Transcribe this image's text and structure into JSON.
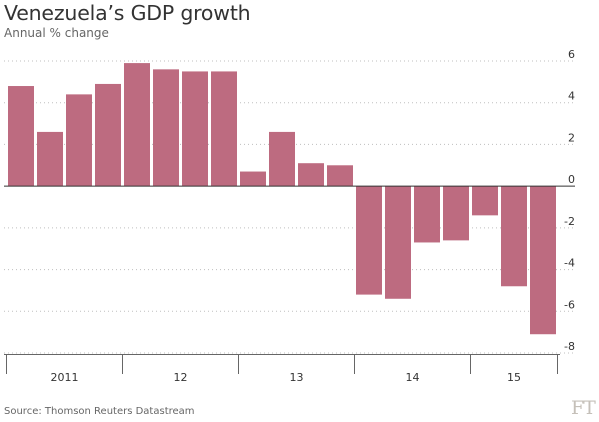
{
  "chart_data": {
    "type": "bar",
    "title": "Venezuela’s GDP growth",
    "subtitle": "Annual % change",
    "source": "Source: Thomson Reuters Datastream",
    "logo_text": "FT",
    "xlabel": "",
    "ylabel": "",
    "ylim": [
      -8,
      6
    ],
    "yticks": [
      6,
      4,
      2,
      0,
      -2,
      -4,
      -6,
      -8
    ],
    "values": [
      4.8,
      2.6,
      4.4,
      4.9,
      5.9,
      5.6,
      5.5,
      5.5,
      0.7,
      2.6,
      1.1,
      1.0,
      -5.2,
      -5.4,
      -2.7,
      -2.6,
      -1.4,
      -4.8,
      -7.1
    ],
    "year_labels": [
      "2011",
      "12",
      "13",
      "14",
      "15"
    ],
    "year_groups": [
      [
        0,
        3
      ],
      [
        4,
        7
      ],
      [
        8,
        11
      ],
      [
        12,
        15
      ],
      [
        16,
        18
      ]
    ],
    "grid": true,
    "legend": "none",
    "colors": {
      "bar": "#bd6b80",
      "zero_line": "#333333",
      "grid": "#bfbfbf",
      "axis": "#666666"
    }
  }
}
